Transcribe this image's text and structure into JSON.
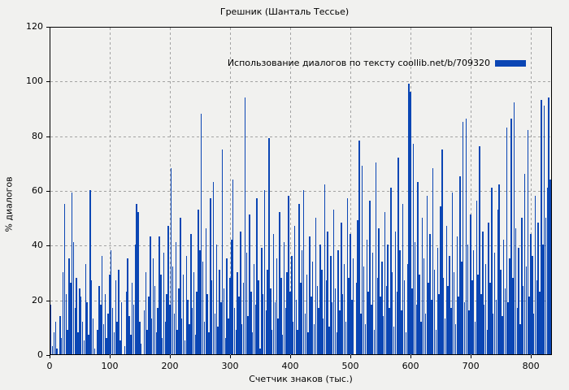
{
  "figure": {
    "title": "Грешник (Шанталь Тессье)"
  },
  "legend": {
    "label": "Использование диалогов по тексту coollib.net/b/709320"
  },
  "axes": {
    "x_label": "Счетчик знаков (тыс.)",
    "y_label": "% диалогов"
  },
  "colors": {
    "bar": "#0b46b4",
    "grid": "#a3a3a3",
    "background": "#f1f1ef",
    "axis": "#000000"
  },
  "chart_data": {
    "type": "bar",
    "title": "Грешник (Шанталь Тессье)",
    "xlabel": "Счетчик знаков (тыс.)",
    "ylabel": "% диалогов",
    "legend_entries": [
      "Использование диалогов по тексту coollib.net/b/709320"
    ],
    "legend_position": "top-right-inside",
    "grid": true,
    "xlim": [
      0,
      835
    ],
    "ylim": [
      0,
      120
    ],
    "xticks": [
      0,
      100,
      200,
      300,
      400,
      500,
      600,
      700,
      800
    ],
    "yticks": [
      0,
      20,
      40,
      60,
      80,
      100,
      120
    ],
    "x_start": 0,
    "x_step": 2.5,
    "series": [
      {
        "name": "Использование диалогов по тексту coollib.net/b/709320",
        "values": [
          18,
          3,
          8,
          12,
          2,
          0,
          14,
          6,
          30,
          55,
          22,
          9,
          35,
          26,
          59,
          41,
          17,
          28,
          8,
          24,
          21,
          12,
          5,
          33,
          19,
          7,
          60,
          27,
          13,
          2,
          0,
          9,
          25,
          18,
          36,
          11,
          22,
          6,
          15,
          29,
          38,
          17,
          8,
          27,
          12,
          31,
          5,
          19,
          0,
          3,
          23,
          35,
          14,
          7,
          26,
          18,
          40,
          55,
          52,
          12,
          4,
          0,
          16,
          30,
          9,
          21,
          43,
          13,
          35,
          25,
          8,
          17,
          43,
          29,
          6,
          37,
          12,
          22,
          47,
          18,
          68,
          32,
          15,
          41,
          9,
          24,
          50,
          13,
          29,
          5,
          36,
          20,
          11,
          44,
          17,
          30,
          7,
          23,
          53,
          38,
          88,
          34,
          12,
          46,
          22,
          8,
          57,
          27,
          63,
          15,
          40,
          10,
          31,
          19,
          75,
          24,
          6,
          35,
          13,
          28,
          42,
          64,
          17,
          9,
          30,
          21,
          45,
          11,
          26,
          94,
          37,
          14,
          51,
          23,
          8,
          33,
          18,
          57,
          27,
          2,
          39,
          22,
          60,
          16,
          31,
          79,
          24,
          9,
          44,
          19,
          35,
          13,
          52,
          28,
          7,
          41,
          17,
          30,
          58,
          23,
          36,
          12,
          47,
          20,
          9,
          55,
          26,
          38,
          60,
          15,
          29,
          8,
          43,
          21,
          34,
          11,
          50,
          25,
          17,
          40,
          31,
          13,
          62,
          27,
          45,
          10,
          36,
          19,
          53,
          24,
          8,
          38,
          16,
          48,
          22,
          33,
          12,
          57,
          28,
          44,
          20,
          35,
          0,
          26,
          49,
          78,
          15,
          69,
          32,
          11,
          42,
          23,
          56,
          18,
          37,
          9,
          70,
          28,
          46,
          21,
          34,
          14,
          52,
          25,
          40,
          17,
          61,
          30,
          10,
          45,
          23,
          72,
          38,
          16,
          55,
          27,
          8,
          33,
          99,
          96,
          24,
          77,
          41,
          18,
          63,
          29,
          12,
          50,
          35,
          15,
          58,
          26,
          44,
          20,
          68,
          31,
          9,
          39,
          22,
          54,
          75,
          28,
          13,
          47,
          25,
          36,
          17,
          59,
          30,
          11,
          43,
          21,
          65,
          34,
          85,
          19,
          86,
          40,
          16,
          51,
          27,
          38,
          12,
          56,
          29,
          76,
          22,
          45,
          18,
          33,
          9,
          48,
          26,
          61,
          15,
          37,
          20,
          53,
          62,
          31,
          14,
          42,
          24,
          83,
          19,
          35,
          86,
          28,
          92,
          46,
          17,
          39,
          11,
          50,
          25,
          66,
          32,
          82,
          21,
          44,
          36,
          15,
          58,
          27,
          48,
          23,
          93,
          40,
          91,
          50,
          61,
          94,
          64
        ]
      }
    ]
  }
}
